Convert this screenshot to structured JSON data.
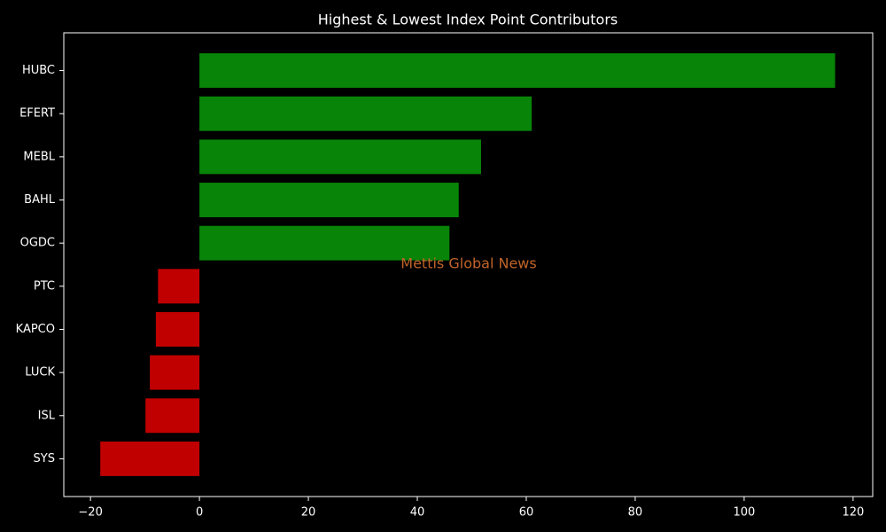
{
  "chart_data": {
    "type": "hbar",
    "title": "Highest & Lowest Index Point Contributors",
    "categories": [
      "HUBC",
      "EFERT",
      "MEBL",
      "BAHL",
      "OGDC",
      "PTC",
      "KAPCO",
      "LUCK",
      "ISL",
      "SYS"
    ],
    "values": [
      116.7,
      61.0,
      51.7,
      47.6,
      45.9,
      -7.6,
      -8.0,
      -9.1,
      -9.9,
      -18.2
    ],
    "colors": [
      "#088408",
      "#088408",
      "#088408",
      "#088408",
      "#088408",
      "#c00000",
      "#c00000",
      "#c00000",
      "#c00000",
      "#c00000"
    ],
    "xlim": [
      -24.9,
      123.6
    ],
    "xticks": [
      {
        "value": -20,
        "label": "−20"
      },
      0,
      20,
      40,
      60,
      80,
      100,
      120
    ],
    "annotation": "Mettis Global News"
  }
}
